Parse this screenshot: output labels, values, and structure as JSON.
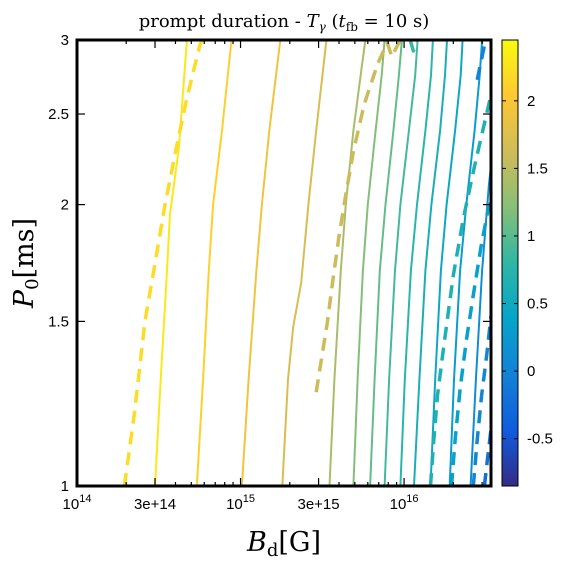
{
  "chart_data": {
    "type": "contour",
    "title": {
      "prefix": "prompt duration - ",
      "var": "T",
      "var_sub": "γ",
      "open": " (",
      "param": "t",
      "param_sub": "fb",
      "close": " = 10 s)"
    },
    "xlabel": {
      "var": "B",
      "sub": "d",
      "unit": "[G]"
    },
    "ylabel": {
      "var": "P",
      "sub": "0",
      "unit": "[ms]"
    },
    "x_scale": "log",
    "y_scale": "log",
    "xlim": [
      100000000000000.0,
      3.4e+16
    ],
    "ylim": [
      1,
      3
    ],
    "x_ticks": [
      {
        "value": 100000000000000.0,
        "base": "10",
        "exp": "14"
      },
      {
        "value": 300000000000000.0,
        "text": "3e+14"
      },
      {
        "value": 1000000000000000.0,
        "base": "10",
        "exp": "15"
      },
      {
        "value": 3000000000000000.0,
        "text": "3e+15"
      },
      {
        "value": 1e+16,
        "base": "10",
        "exp": "16"
      }
    ],
    "y_ticks": [
      {
        "value": 1,
        "text": "1"
      },
      {
        "value": 1.5,
        "text": "1.5"
      },
      {
        "value": 2,
        "text": "2"
      },
      {
        "value": 2.5,
        "text": "2.5"
      },
      {
        "value": 3,
        "text": "3"
      }
    ],
    "colorbar": {
      "colormap": "parula",
      "range": [
        -0.85,
        2.45
      ],
      "ticks": [
        {
          "value": -0.5,
          "text": "-0.5"
        },
        {
          "value": 0,
          "text": "0"
        },
        {
          "value": 0.5,
          "text": "0.5"
        },
        {
          "value": 1,
          "text": "1"
        },
        {
          "value": 1.5,
          "text": "1.5"
        },
        {
          "value": 2,
          "text": "2"
        }
      ]
    },
    "contours": [
      {
        "level": 2.3,
        "style": "solid",
        "points": [
          [
            300000000000000.0,
            1
          ],
          [
            325000000000000.0,
            1.3
          ],
          [
            355000000000000.0,
            1.7
          ],
          [
            370000000000000.0,
            1.95
          ],
          [
            420000000000000.0,
            2.3
          ],
          [
            470000000000000.0,
            3
          ]
        ]
      },
      {
        "level": 2.1,
        "style": "solid",
        "points": [
          [
            540000000000000.0,
            1
          ],
          [
            590000000000000.0,
            1.3
          ],
          [
            640000000000000.0,
            1.7
          ],
          [
            680000000000000.0,
            2.0
          ],
          [
            770000000000000.0,
            2.4
          ],
          [
            880000000000000.0,
            3
          ]
        ]
      },
      {
        "level": 1.9,
        "style": "solid",
        "points": [
          [
            1020000000000000.0,
            1
          ],
          [
            1120000000000000.0,
            1.3
          ],
          [
            1250000000000000.0,
            1.7
          ],
          [
            1350000000000000.0,
            2.0
          ],
          [
            1500000000000000.0,
            2.4
          ],
          [
            1750000000000000.0,
            3
          ]
        ]
      },
      {
        "level": 1.7,
        "style": "solid",
        "points": [
          [
            1800000000000000.0,
            1
          ],
          [
            1950000000000000.0,
            1.3
          ],
          [
            2100000000000000.0,
            1.48
          ],
          [
            2350000000000000.0,
            1.65
          ],
          [
            2600000000000000.0,
            2.0
          ],
          [
            2900000000000000.0,
            2.4
          ],
          [
            3350000000000000.0,
            3
          ]
        ]
      },
      {
        "level": 1.4,
        "style": "solid",
        "points": [
          [
            3500000000000000.0,
            1
          ],
          [
            3750000000000000.0,
            1.3
          ],
          [
            4100000000000000.0,
            1.7
          ],
          [
            4400000000000000.0,
            2.0
          ],
          [
            4900000000000000.0,
            2.4
          ],
          [
            5500000000000000.0,
            2.8
          ],
          [
            5800000000000000.0,
            3
          ]
        ]
      },
      {
        "level": 1.2,
        "style": "solid",
        "points": [
          [
            4900000000000000.0,
            1
          ],
          [
            5200000000000000.0,
            1.3
          ],
          [
            5600000000000000.0,
            1.7
          ],
          [
            6000000000000000.0,
            2.0
          ],
          [
            6700000000000000.0,
            2.4
          ],
          [
            7300000000000000.0,
            2.75
          ],
          [
            7600000000000000.0,
            3
          ]
        ]
      },
      {
        "level": 1.05,
        "style": "solid",
        "points": [
          [
            6200000000000000.0,
            1
          ],
          [
            6600000000000000.0,
            1.3
          ],
          [
            7100000000000000.0,
            1.7
          ],
          [
            7700000000000000.0,
            2.0
          ],
          [
            8600000000000000.0,
            2.4
          ],
          [
            9300000000000000.0,
            2.75
          ],
          [
            9700000000000000.0,
            3
          ]
        ]
      },
      {
        "level": 0.9,
        "style": "solid",
        "points": [
          [
            7600000000000000.0,
            1
          ],
          [
            8100000000000000.0,
            1.3
          ],
          [
            8800000000000000.0,
            1.7
          ],
          [
            9500000000000000.0,
            2.0
          ],
          [
            1.07e+16,
            2.4
          ],
          [
            1.17e+16,
            2.75
          ],
          [
            1.21e+16,
            3
          ]
        ]
      },
      {
        "level": 0.75,
        "style": "solid",
        "points": [
          [
            9500000000000000.0,
            1
          ],
          [
            1.01e+16,
            1.3
          ],
          [
            1.1e+16,
            1.7
          ],
          [
            1.2e+16,
            2.0
          ],
          [
            1.35e+16,
            2.4
          ],
          [
            1.46e+16,
            2.75
          ],
          [
            1.5e+16,
            3
          ]
        ]
      },
      {
        "level": 0.6,
        "style": "solid",
        "points": [
          [
            1.15e+16,
            1
          ],
          [
            1.24e+16,
            1.3
          ],
          [
            1.35e+16,
            1.7
          ],
          [
            1.47e+16,
            2.0
          ],
          [
            1.66e+16,
            2.4
          ],
          [
            1.78e+16,
            2.75
          ],
          [
            1.83e+16,
            3
          ]
        ]
      },
      {
        "level": 0.45,
        "style": "solid",
        "points": [
          [
            1.45e+16,
            1
          ],
          [
            1.55e+16,
            1.3
          ],
          [
            1.68e+16,
            1.7
          ],
          [
            1.82e+16,
            2.0
          ],
          [
            2.05e+16,
            2.4
          ],
          [
            2.22e+16,
            2.75
          ],
          [
            2.28e+16,
            3
          ]
        ]
      },
      {
        "level": 0.3,
        "style": "solid",
        "points": [
          [
            1.9e+16,
            1
          ],
          [
            2.02e+16,
            1.3
          ],
          [
            2.2e+16,
            1.7
          ],
          [
            2.4e+16,
            2.0
          ],
          [
            2.7e+16,
            2.4
          ],
          [
            2.9e+16,
            2.75
          ],
          [
            3e+16,
            3
          ]
        ]
      },
      {
        "level": 0.12,
        "style": "solid",
        "points": [
          [
            2.55e+16,
            1
          ],
          [
            2.75e+16,
            1.3
          ],
          [
            3e+16,
            1.7
          ],
          [
            3.3e+16,
            2.1
          ],
          [
            3.4e+16,
            2.2
          ]
        ]
      },
      {
        "level": 2.2,
        "style": "dashed",
        "points": [
          [
            195000000000000.0,
            1
          ],
          [
            225000000000000.0,
            1.2
          ],
          [
            260000000000000.0,
            1.5
          ],
          [
            295000000000000.0,
            1.7
          ],
          [
            345000000000000.0,
            2.0
          ],
          [
            405000000000000.0,
            2.3
          ],
          [
            470000000000000.0,
            2.6
          ],
          [
            560000000000000.0,
            2.95
          ],
          [
            580000000000000.0,
            3
          ]
        ]
      },
      {
        "level": 1.6,
        "style": "dashed",
        "points": [
          [
            2900000000000000.0,
            1.26
          ],
          [
            3050000000000000.0,
            1.33
          ],
          [
            3400000000000000.0,
            1.5
          ],
          [
            3600000000000000.0,
            1.62
          ],
          [
            4000000000000000.0,
            1.85
          ],
          [
            4400000000000000.0,
            2.05
          ],
          [
            4900000000000000.0,
            2.28
          ],
          [
            5700000000000000.0,
            2.56
          ],
          [
            6900000000000000.0,
            2.83
          ],
          [
            7900000000000000.0,
            2.98
          ],
          [
            8400000000000000.0,
            2.88
          ],
          [
            9300000000000000.0,
            2.98
          ],
          [
            9500000000000000.0,
            3
          ]
        ]
      },
      {
        "level": 0.85,
        "style": "dashed",
        "points": [
          [
            1.09e+16,
            3
          ],
          [
            1.14e+16,
            2.92
          ],
          [
            1.19e+16,
            3
          ]
        ]
      },
      {
        "level": 0.0,
        "style": "dashed",
        "points": [
          [
            2.8e+16,
            2.72
          ],
          [
            3e+16,
            2.88
          ],
          [
            3.15e+16,
            3
          ]
        ]
      },
      {
        "level": 0.65,
        "style": "dashed",
        "points": [
          [
            1.45e+16,
            1.0
          ],
          [
            1.52e+16,
            1.12
          ],
          [
            1.6e+16,
            1.25
          ],
          [
            1.72e+16,
            1.38
          ],
          [
            1.85e+16,
            1.52
          ],
          [
            2e+16,
            1.68
          ],
          [
            2.3e+16,
            1.93
          ],
          [
            2.7e+16,
            2.2
          ],
          [
            3.4e+16,
            2.62
          ]
        ]
      },
      {
        "level": 0.35,
        "style": "dashed",
        "points": [
          [
            1.95e+16,
            1.0
          ],
          [
            2.05e+16,
            1.12
          ],
          [
            2.2e+16,
            1.27
          ],
          [
            2.4e+16,
            1.43
          ],
          [
            2.65e+16,
            1.6
          ],
          [
            2.95e+16,
            1.8
          ],
          [
            3.4e+16,
            2.05
          ]
        ]
      },
      {
        "level": 0.05,
        "style": "dashed",
        "points": [
          [
            2.65e+16,
            1.0
          ],
          [
            2.8e+16,
            1.12
          ],
          [
            2.98e+16,
            1.25
          ],
          [
            3.2e+16,
            1.38
          ],
          [
            3.4e+16,
            1.52
          ]
        ]
      },
      {
        "level": -0.2,
        "style": "dashed",
        "points": [
          [
            3.1e+16,
            1.0
          ],
          [
            3.22e+16,
            1.06
          ],
          [
            3.4e+16,
            1.15
          ]
        ]
      }
    ]
  }
}
